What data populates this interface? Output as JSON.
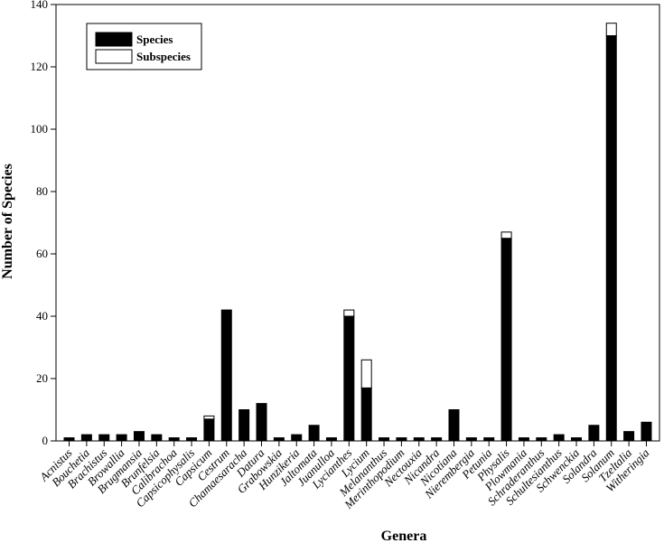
{
  "chart_data": {
    "type": "bar",
    "stacked": true,
    "title": "",
    "xlabel": "Genera",
    "ylabel": "Number of Species",
    "ylim": [
      0,
      140
    ],
    "yticks": [
      0,
      20,
      40,
      60,
      80,
      100,
      120,
      140
    ],
    "legend_position": "top-left",
    "categories": [
      "Acnistus",
      "Bouchetia",
      "Brachistus",
      "Browallia",
      "Brugmansia",
      "Brunfelsia",
      "Calibrachoa",
      "Capsicophysalis",
      "Capsicum",
      "Cestrum",
      "Chamaesaracha",
      "Datura",
      "Grabowskia",
      "Hunzikeria",
      "Jaltomata",
      "Juanulloa",
      "Lycianthes",
      "Lycium",
      "Melananthus",
      "Merinthopodium",
      "Nectouxia",
      "Nicandra",
      "Nicotiana",
      "Nierembergia",
      "Petunia",
      "Physalis",
      "Plowmania",
      "Schraderanthus",
      "Schultesianthus",
      "Schwenckia",
      "Solandra",
      "Solanum",
      "Tzeltalia",
      "Witheringia"
    ],
    "series": [
      {
        "name": "Species",
        "color": "#000000",
        "values": [
          1,
          2,
          2,
          2,
          3,
          2,
          1,
          1,
          7,
          42,
          10,
          12,
          1,
          2,
          5,
          1,
          40,
          17,
          1,
          1,
          1,
          1,
          10,
          1,
          1,
          65,
          1,
          1,
          2,
          1,
          5,
          130,
          3,
          6
        ]
      },
      {
        "name": "Subspecies",
        "color": "#ffffff",
        "values": [
          0,
          0,
          0,
          0,
          0,
          0,
          0,
          0,
          1,
          0,
          0,
          0,
          0,
          0,
          0,
          0,
          2,
          9,
          0,
          0,
          0,
          0,
          0,
          0,
          0,
          2,
          0,
          0,
          0,
          0,
          0,
          4,
          0,
          0
        ]
      }
    ]
  }
}
